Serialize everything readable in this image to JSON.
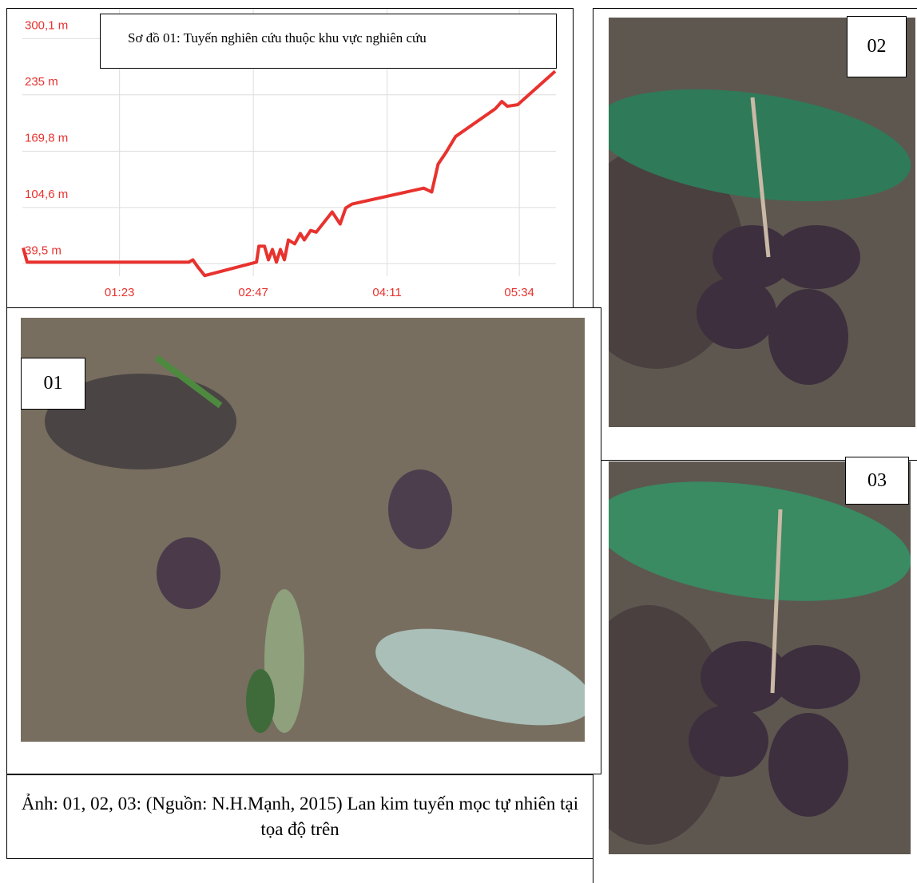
{
  "chart_data": {
    "type": "line",
    "title": "Sơ đồ 01: Tuyến nghiên cứu thuộc khu vực nghiên cứu",
    "x": [
      22.5,
      25,
      126.5,
      129,
      132.5,
      136.5,
      169,
      170.5,
      174,
      176.5,
      179,
      181.5,
      184,
      186.5,
      189,
      193,
      196.5,
      199,
      203,
      206.5,
      216.5,
      221.5,
      225,
      229,
      274,
      279,
      283,
      288,
      294,
      319,
      323,
      326.5,
      333,
      356.5
    ],
    "values": [
      57.9,
      41.3,
      41.3,
      44,
      34.9,
      25.7,
      41.3,
      59.8,
      59.8,
      44,
      56,
      41.3,
      56,
      44,
      67,
      62.5,
      74.5,
      67,
      78,
      76,
      99.4,
      85.5,
      104,
      108.6,
      127,
      122.5,
      154.7,
      168.4,
      186.8,
      219,
      227.3,
      221.8,
      223.6,
      262.3
    ],
    "color": "#e8322e",
    "xlim": [
      22,
      357
    ],
    "ylim": [
      25,
      318
    ],
    "xticks": [
      {
        "value": 83,
        "label": "01:23"
      },
      {
        "value": 167,
        "label": "02:47"
      },
      {
        "value": 251,
        "label": "04:11"
      },
      {
        "value": 334,
        "label": "05:34"
      }
    ],
    "yticks": [
      {
        "value": 300.1,
        "label": "300,1 m"
      },
      {
        "value": 235,
        "label": "235 m"
      },
      {
        "value": 169.8,
        "label": "169,8 m"
      },
      {
        "value": 104.6,
        "label": "104,6 m"
      },
      {
        "value": 39.5,
        "label": "39,5 m"
      }
    ],
    "grid": true
  },
  "photos": [
    {
      "label": "01"
    },
    {
      "label": "02"
    },
    {
      "label": "03"
    }
  ],
  "caption": "Ảnh: 01, 02, 03: (Nguồn: N.H.Mạnh, 2015) Lan kim tuyến mọc tự nhiên tại tọa độ trên"
}
